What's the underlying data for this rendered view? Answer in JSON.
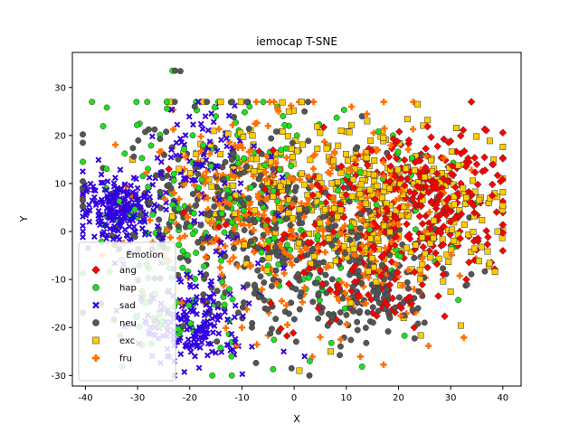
{
  "chart_data": {
    "type": "scatter",
    "title": "iemocap T-SNE",
    "xlabel": "X",
    "ylabel": "Y",
    "xlim": [
      -42.5,
      43.5
    ],
    "ylim": [
      -32.2,
      37.3
    ],
    "xticks": [
      -40,
      -30,
      -20,
      -10,
      0,
      10,
      20,
      30,
      40
    ],
    "yticks": [
      -30,
      -20,
      -10,
      0,
      10,
      20,
      30
    ],
    "grid": false,
    "legend": {
      "title": "Emotion",
      "placement": "lower-left",
      "entries": [
        "ang",
        "hap",
        "sad",
        "neu",
        "exc",
        "fru"
      ]
    },
    "series": [
      {
        "name": "ang",
        "marker": "diamond",
        "color": "#ff0000",
        "clusters": [
          {
            "cx": 27,
            "cy": 7,
            "sx": 7,
            "sy": 7,
            "n": 260
          },
          {
            "cx": 13,
            "cy": 0,
            "sx": 6,
            "sy": 8,
            "n": 90
          },
          {
            "cx": 18,
            "cy": -13,
            "sx": 4,
            "sy": 4,
            "n": 40
          },
          {
            "cx": -2,
            "cy": 2,
            "sx": 9,
            "sy": 9,
            "n": 50
          }
        ],
        "points": [
          [
            35,
            14
          ],
          [
            38,
            14
          ],
          [
            22,
            19
          ],
          [
            33,
            -10
          ],
          [
            17,
            -16
          ],
          [
            23,
            -20
          ],
          [
            -24,
            13
          ],
          [
            -5,
            1
          ]
        ]
      },
      {
        "name": "hap",
        "marker": "circle",
        "color": "#1ee01e",
        "clusters": [
          {
            "cx": -20,
            "cy": 5,
            "sx": 11,
            "sy": 11,
            "n": 130
          },
          {
            "cx": 2,
            "cy": 0,
            "sx": 14,
            "sy": 12,
            "n": 120
          },
          {
            "cx": -22,
            "cy": -18,
            "sx": 6,
            "sy": 5,
            "n": 30
          }
        ],
        "points": [
          [
            -23.3,
            33.5
          ],
          [
            -36,
            9
          ],
          [
            -15,
            24
          ],
          [
            20,
            15
          ],
          [
            35,
            6
          ],
          [
            -12,
            -26
          ],
          [
            3,
            -27
          ],
          [
            -1,
            22
          ]
        ]
      },
      {
        "name": "sad",
        "marker": "x",
        "color": "#3300dd",
        "clusters": [
          {
            "cx": -33,
            "cy": 5,
            "sx": 4,
            "sy": 3.5,
            "n": 230
          },
          {
            "cx": -19,
            "cy": -20,
            "sx": 5,
            "sy": 4,
            "n": 170
          },
          {
            "cx": -18,
            "cy": 16,
            "sx": 5,
            "sy": 5,
            "n": 80
          },
          {
            "cx": -12,
            "cy": -3,
            "sx": 6,
            "sy": 8,
            "n": 40
          }
        ],
        "points": [
          [
            -15,
            26
          ],
          [
            -17,
            24
          ],
          [
            -23,
            -27
          ],
          [
            -19,
            -26
          ],
          [
            -2,
            -25
          ],
          [
            2,
            -26
          ],
          [
            -27,
            -14
          ],
          [
            -22,
            -10
          ]
        ]
      },
      {
        "name": "neu",
        "marker": "circle",
        "color": "#555555",
        "clusters": [
          {
            "cx": -13,
            "cy": 2,
            "sx": 13,
            "sy": 11,
            "n": 270
          },
          {
            "cx": 7,
            "cy": -6,
            "sx": 12,
            "sy": 9,
            "n": 200
          },
          {
            "cx": 15,
            "cy": -13,
            "sx": 5,
            "sy": 4,
            "n": 70
          }
        ],
        "points": [
          [
            -22.8,
            33.5
          ],
          [
            -21.8,
            33.4
          ],
          [
            -0.5,
            -28.5
          ],
          [
            -24,
            -26
          ],
          [
            25,
            -19
          ],
          [
            13,
            24
          ],
          [
            2,
            25
          ],
          [
            -37,
            -15
          ]
        ]
      },
      {
        "name": "exc",
        "marker": "square",
        "color": "#ffcc00",
        "clusters": [
          {
            "cx": 10,
            "cy": 8,
            "sx": 11,
            "sy": 8,
            "n": 230
          },
          {
            "cx": 27,
            "cy": 3,
            "sx": 8,
            "sy": 9,
            "n": 110
          },
          {
            "cx": -5,
            "cy": 13,
            "sx": 8,
            "sy": 7,
            "n": 60
          }
        ],
        "points": [
          [
            1,
            -29
          ],
          [
            7,
            -25
          ],
          [
            14,
            23
          ],
          [
            9,
            21
          ],
          [
            -1,
            25
          ],
          [
            39,
            0
          ],
          [
            21,
            -18
          ],
          [
            -31,
            15
          ],
          [
            -8,
            20
          ]
        ]
      },
      {
        "name": "fru",
        "marker": "plus",
        "color": "#ff6f00",
        "clusters": [
          {
            "cx": -2,
            "cy": 3,
            "sx": 13,
            "sy": 11,
            "n": 260
          },
          {
            "cx": 14,
            "cy": -4,
            "sx": 8,
            "sy": 8,
            "n": 90
          },
          {
            "cx": -15,
            "cy": 10,
            "sx": 8,
            "sy": 6,
            "n": 60
          }
        ],
        "points": [
          [
            11,
            26
          ],
          [
            -3,
            25
          ],
          [
            -23,
            8
          ],
          [
            23,
            -12
          ],
          [
            16,
            17
          ],
          [
            -10,
            -20
          ],
          [
            5,
            -22
          ],
          [
            -5,
            22
          ]
        ]
      }
    ]
  }
}
